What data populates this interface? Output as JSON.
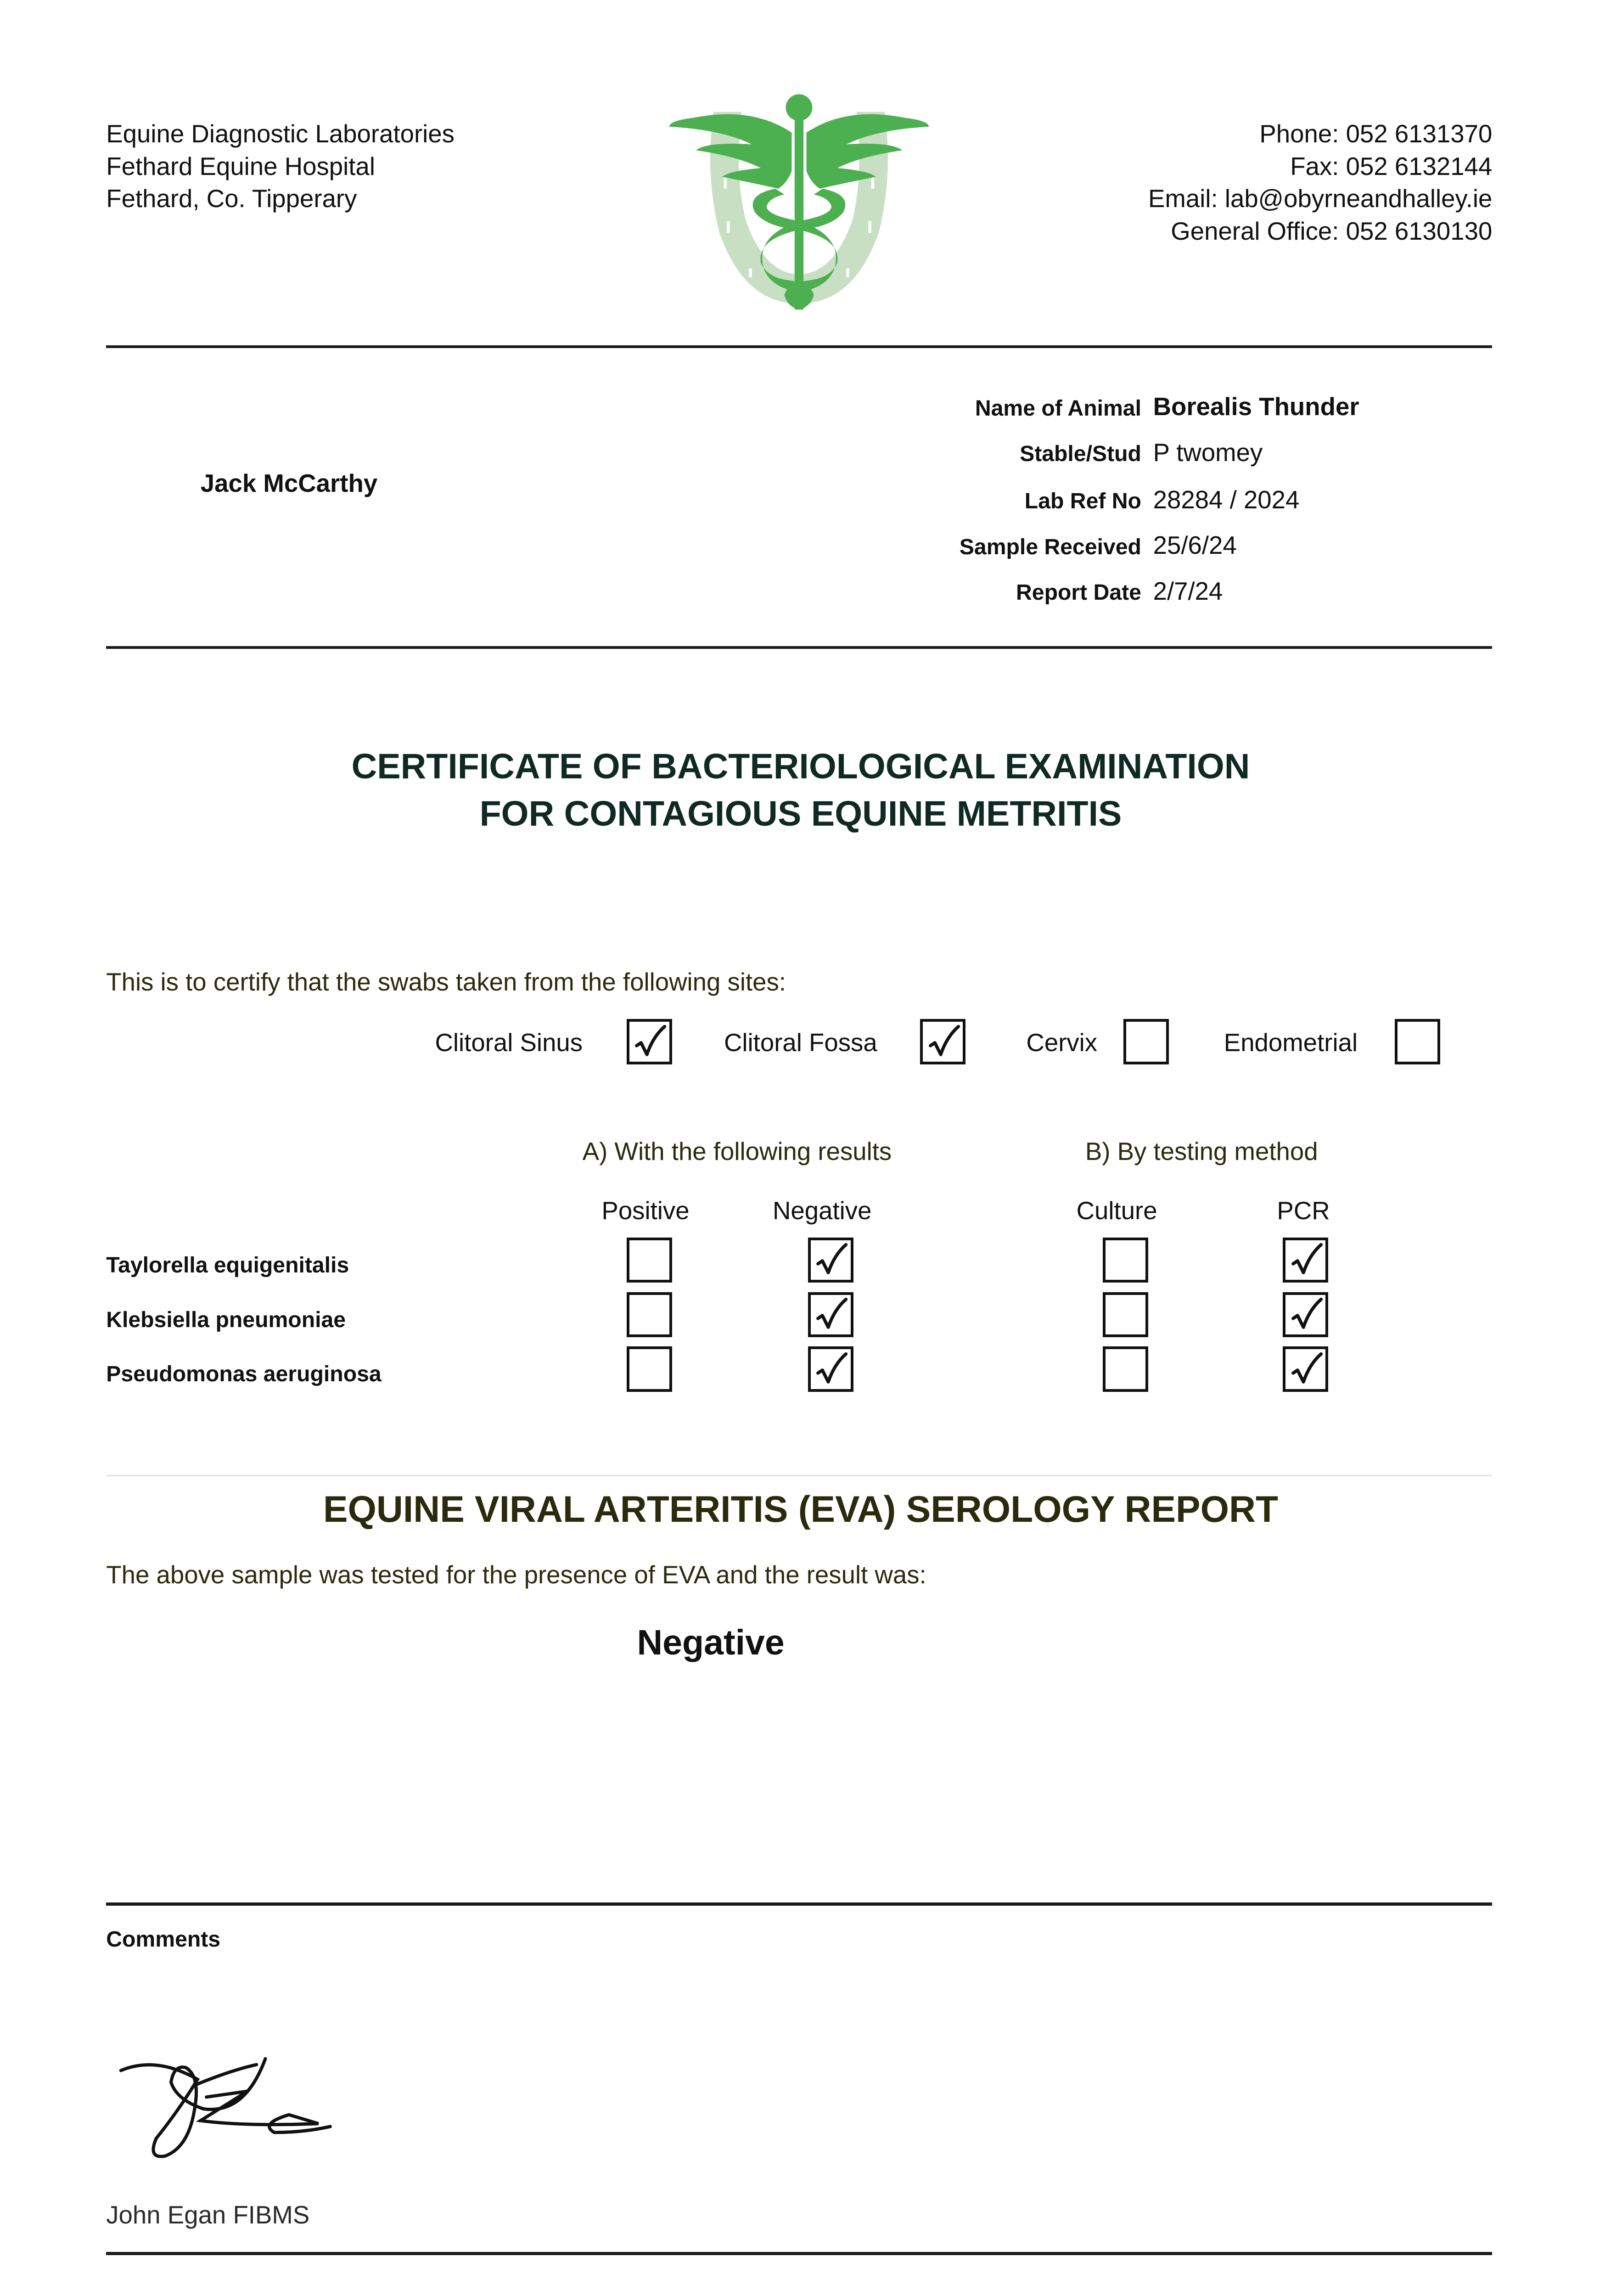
{
  "header": {
    "address": [
      "Equine Diagnostic Laboratories",
      "Fethard Equine Hospital",
      "Fethard, Co. Tipperary"
    ],
    "contact": [
      "Phone: 052 6131370",
      "Fax: 052 6132144",
      "Email: lab@obyrneandhalley.ie",
      "General Office: 052 6130130"
    ],
    "logo": "caduceus-horseshoe-logo",
    "logo_colors": {
      "caduceus": "#4caf50",
      "horseshoe": "#c8dfc4"
    }
  },
  "client": {
    "name": "Jack McCarthy"
  },
  "info": [
    {
      "label": "Name of Animal",
      "value": "Borealis Thunder"
    },
    {
      "label": "Stable/Stud",
      "value": "P twomey"
    },
    {
      "label": "Lab Ref No",
      "value": "28284 / 2024"
    },
    {
      "label": "Sample Received",
      "value": "25/6/24"
    },
    {
      "label": "Report Date",
      "value": "2/7/24"
    }
  ],
  "certificate": {
    "title_line1": "CERTIFICATE OF BACTERIOLOGICAL EXAMINATION",
    "title_line2": "FOR CONTAGIOUS EQUINE METRITIS",
    "intro": "This is to certify that the swabs taken from the following sites:",
    "sites": [
      {
        "label": "Clitoral Sinus",
        "checked": true
      },
      {
        "label": "Clitoral Fossa",
        "checked": true
      },
      {
        "label": "Cervix",
        "checked": false
      },
      {
        "label": "Endometrial",
        "checked": false
      }
    ],
    "results_heading": "A) With the following results",
    "method_heading": "B) By testing method",
    "columns": [
      "Positive",
      "Negative",
      "Culture",
      "PCR"
    ],
    "organisms": [
      {
        "name": "Taylorella equigenitalis",
        "checks": [
          false,
          true,
          false,
          true
        ]
      },
      {
        "name": "Klebsiella pneumoniae",
        "checks": [
          false,
          true,
          false,
          true
        ]
      },
      {
        "name": "Pseudomonas aeruginosa",
        "checks": [
          false,
          true,
          false,
          true
        ]
      }
    ]
  },
  "eva": {
    "title": "EQUINE VIRAL ARTERITIS (EVA) SEROLOGY REPORT",
    "text": "The above sample was tested for the presence of EVA and the result was:",
    "result": "Negative"
  },
  "comments": {
    "label": "Comments"
  },
  "signatory": {
    "name": "John Egan FIBMS",
    "signature": "handwritten-signature"
  }
}
